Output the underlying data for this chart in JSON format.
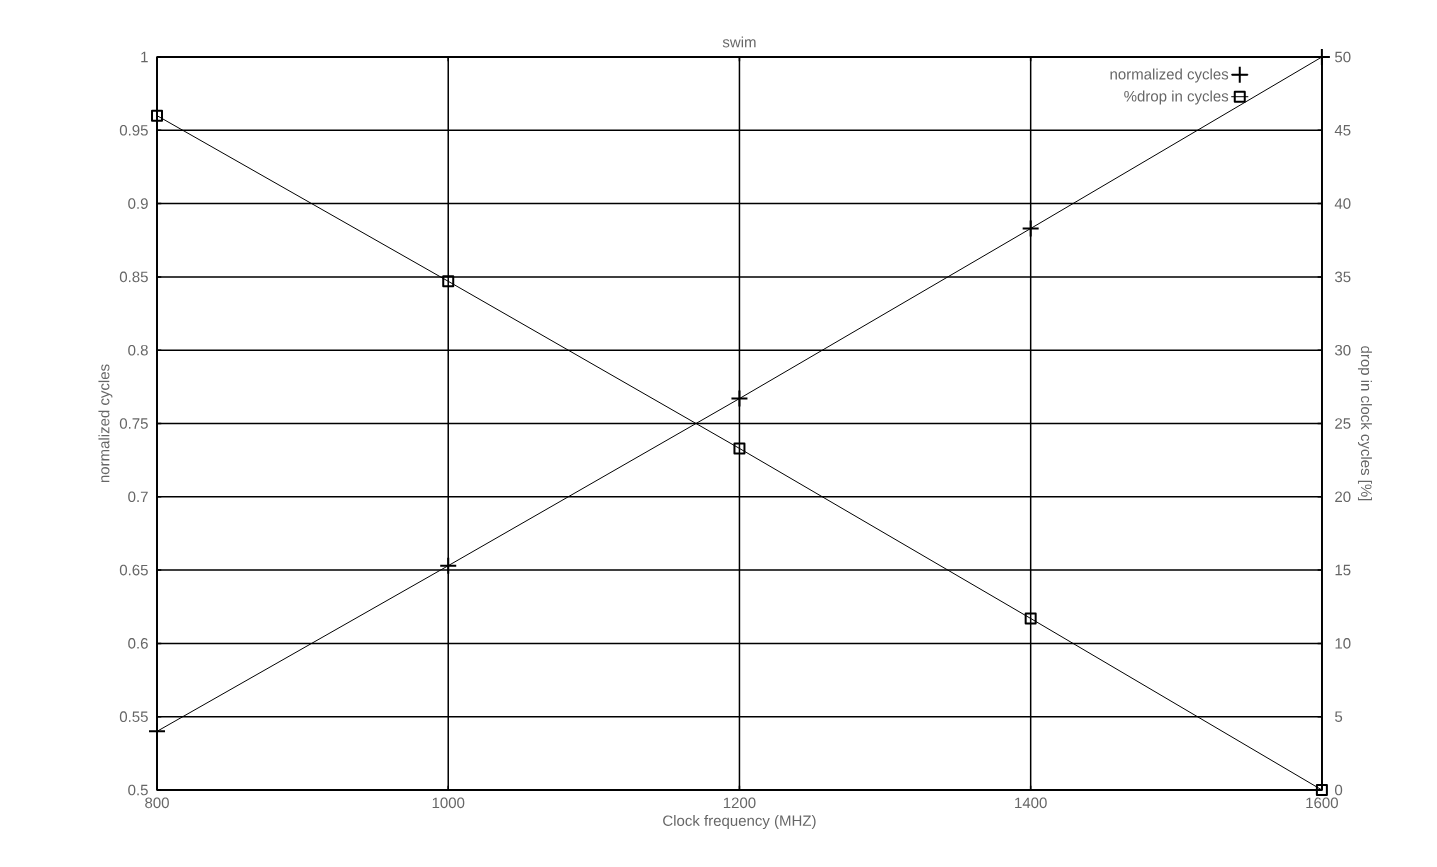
{
  "chart_data": {
    "type": "line",
    "title": "swim",
    "xlabel": "Clock frequency (MHZ)",
    "ylabel": "normalized cycles",
    "y2label": "drop in clock cycles [%]",
    "x": [
      800,
      1000,
      1200,
      1400,
      1600
    ],
    "series": [
      {
        "name": "normalized cycles",
        "color": "#000000",
        "marker": "cross",
        "values": [
          0.54,
          0.653,
          0.767,
          0.883,
          1.0
        ]
      },
      {
        "name": "%drop in cycles",
        "color": "#000000",
        "marker": "square",
        "axis": "y2",
        "values": [
          46,
          34.7,
          23.3,
          11.7,
          0
        ]
      }
    ],
    "xlim": [
      800,
      1600
    ],
    "xticks": [
      800,
      1000,
      1200,
      1400,
      1600
    ],
    "ylim": [
      0.5,
      1
    ],
    "yticks": [
      0.5,
      0.55,
      0.6,
      0.65,
      0.7,
      0.75,
      0.8,
      0.85,
      0.9,
      0.95,
      1
    ],
    "y2lim": [
      0,
      50
    ],
    "y2ticks": [
      0,
      5,
      10,
      15,
      20,
      25,
      30,
      35,
      40,
      45,
      50
    ],
    "grid": true,
    "legend": "top right",
    "line_style": "solid"
  }
}
